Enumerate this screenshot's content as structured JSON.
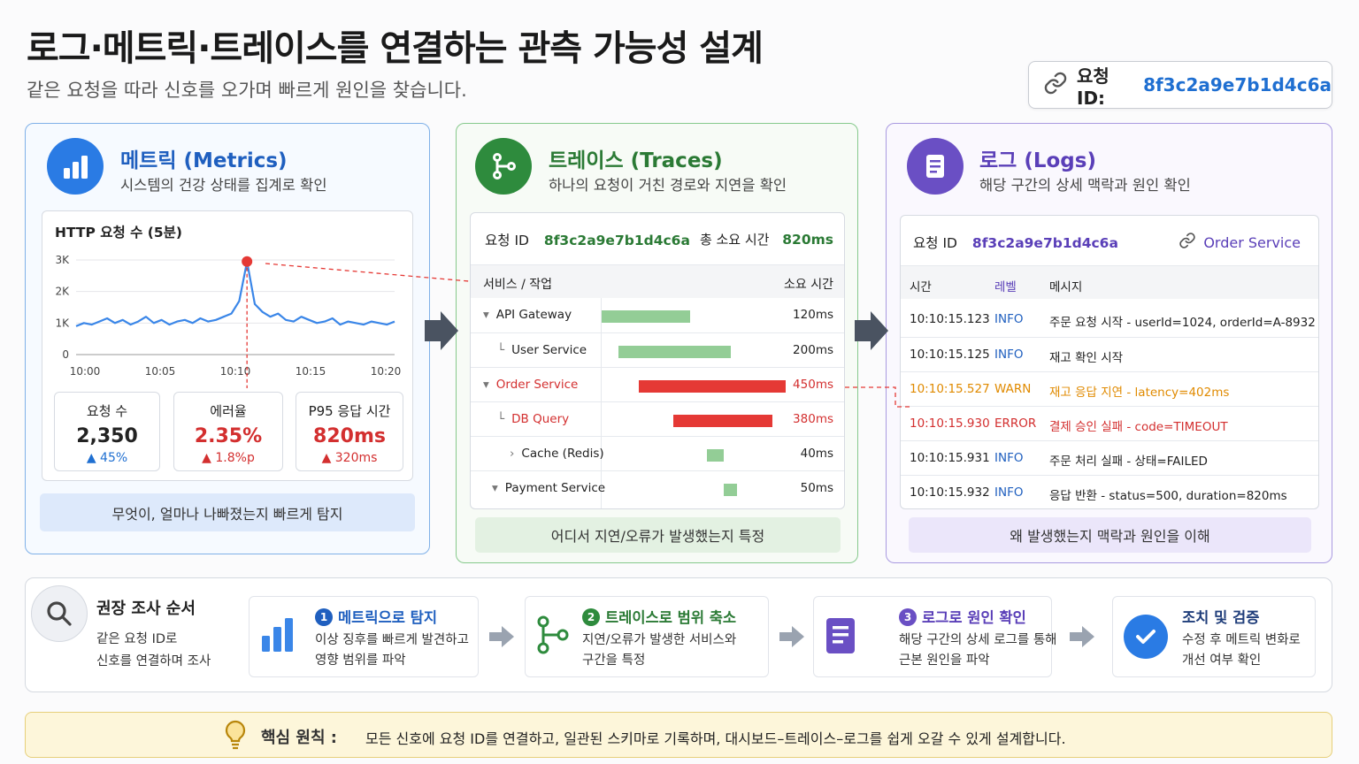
{
  "header": {
    "title": "로그·메트릭·트레이스를 연결하는 관측 가능성 설계",
    "subtitle": "같은 요청을 따라 신호를 오가며 빠르게 원인을 찾습니다.",
    "request_label": "요청 ID:",
    "request_id": "8f3c2a9e7b1d4c6a"
  },
  "metrics": {
    "title": "메트릭 (Metrics)",
    "subtitle": "시스템의 건강 상태를 집계로 확인",
    "chart_title": "HTTP 요청 수 (5분)",
    "stats": [
      {
        "label": "요청 수",
        "value": "2,350",
        "delta": "▲ 45%"
      },
      {
        "label": "에러율",
        "value": "2.35%",
        "delta": "▲ 1.8%p"
      },
      {
        "label": "P95 응답 시간",
        "value": "820ms",
        "delta": "▲ 320ms"
      }
    ],
    "banner": "무엇이, 얼마나 나빠졌는지 빠르게 탐지"
  },
  "chart_data": {
    "type": "line",
    "title": "HTTP 요청 수 (5분)",
    "x_ticks": [
      "10:00",
      "10:05",
      "10:10",
      "10:15",
      "10:20"
    ],
    "y_ticks": [
      "0",
      "1K",
      "2K",
      "3K"
    ],
    "ylim": [
      0,
      3000
    ],
    "series": [
      {
        "values": [
          900,
          1000,
          950,
          1050,
          1150,
          1000,
          1100,
          950,
          1050,
          1200,
          1000,
          1100,
          950,
          1050,
          1100,
          1000,
          1150,
          1050,
          1100,
          1200,
          1300,
          1700,
          2950,
          1600,
          1350,
          1200,
          1300,
          1100,
          1050,
          1200,
          1100,
          1000,
          1050,
          1150,
          950,
          1050,
          1000,
          950,
          1050,
          1000,
          950,
          1050
        ],
        "color": "#3a86e8"
      }
    ],
    "highlight": {
      "index": 22,
      "value": 2950,
      "color": "#e53935"
    }
  },
  "traces": {
    "title": "트레이스 (Traces)",
    "subtitle": "하나의 요청이 거친 경로와 지연을 확인",
    "req_label": "요청 ID",
    "req_id": "8f3c2a9e7b1d4c6a",
    "total_label": "총 소요 시간",
    "total_value": "820ms",
    "col_service": "서비스 / 작업",
    "col_time": "소요 시간",
    "spans": [
      {
        "name": "API Gateway",
        "prefix": "▾",
        "ms": "120ms",
        "start": 0.0,
        "width": 0.47,
        "color": "#93cd96",
        "error": false
      },
      {
        "name": "User Service",
        "prefix": "└",
        "ms": "200ms",
        "start": 0.09,
        "width": 0.6,
        "color": "#93cd96",
        "error": false
      },
      {
        "name": "Order Service",
        "prefix": "▾",
        "ms": "450ms",
        "start": 0.2,
        "width": 0.78,
        "color": "#e53935",
        "error": true
      },
      {
        "name": "DB Query",
        "prefix": "└",
        "ms": "380ms",
        "start": 0.38,
        "width": 0.53,
        "color": "#e53935",
        "error": true
      },
      {
        "name": "Cache (Redis)",
        "prefix": "›",
        "ms": "40ms",
        "start": 0.56,
        "width": 0.09,
        "color": "#93cd96",
        "error": false
      },
      {
        "name": "Payment Service",
        "prefix": "▾",
        "ms": "50ms",
        "start": 0.65,
        "width": 0.07,
        "color": "#93cd96",
        "error": false
      }
    ],
    "banner": "어디서 지연/오류가 발생했는지 특정"
  },
  "logs": {
    "title": "로그 (Logs)",
    "subtitle": "해당 구간의 상세 맥락과 원인 확인",
    "req_label": "요청 ID",
    "req_id": "8f3c2a9e7b1d4c6a",
    "service": "Order Service",
    "col_time": "시간",
    "col_level": "레벨",
    "col_msg": "메시지",
    "rows": [
      {
        "time": "10:10:15.123",
        "level": "INFO",
        "msg": "주문 요청 시작 - userId=1024, orderId=A-8932",
        "kind": "info"
      },
      {
        "time": "10:10:15.125",
        "level": "INFO",
        "msg": "재고 확인 시작",
        "kind": "info"
      },
      {
        "time": "10:10:15.527",
        "level": "WARN",
        "msg": "재고 응답 지연 - latency=402ms",
        "kind": "warn"
      },
      {
        "time": "10:10:15.930",
        "level": "ERROR",
        "msg": "결제 승인 실패 - code=TIMEOUT",
        "kind": "error"
      },
      {
        "time": "10:10:15.931",
        "level": "INFO",
        "msg": "주문 처리 실패 - 상태=FAILED",
        "kind": "info"
      },
      {
        "time": "10:10:15.932",
        "level": "INFO",
        "msg": "응답 반환 - status=500, duration=820ms",
        "kind": "info"
      }
    ],
    "banner": "왜 발생했는지 맥락과 원인을 이해"
  },
  "investigation": {
    "title": "권장 조사 순서",
    "desc_1": "같은 요청 ID로",
    "desc_2": "신호를 연결하며 조사",
    "steps": [
      {
        "num": "1",
        "title": "메트릭으로 탐지",
        "d1": "이상 징후를 빠르게 발견하고",
        "d2": "영향 범위를 파악",
        "color": "#1f6fd1"
      },
      {
        "num": "2",
        "title": "트레이스로 범위 축소",
        "d1": "지연/오류가 발생한 서비스와",
        "d2": "구간을 특정",
        "color": "#2e8b3d"
      },
      {
        "num": "3",
        "title": "로그로 원인 확인",
        "d1": "해당 구간의 상세 로그를 통해",
        "d2": "근본 원인을 파악",
        "color": "#6a4fc4"
      },
      {
        "num": "",
        "title": "조치 및 검증",
        "d1": "수정 후 메트릭 변화로",
        "d2": "개선 여부 확인",
        "color": "#1f6fd1"
      }
    ]
  },
  "principle": {
    "label": "핵심 원칙 :",
    "text": "모든 신호에 요청 ID를 연결하고, 일관된 스키마로 기록하며, 대시보드–트레이스–로그를 쉽게 오갈 수 있게 설계합니다."
  }
}
